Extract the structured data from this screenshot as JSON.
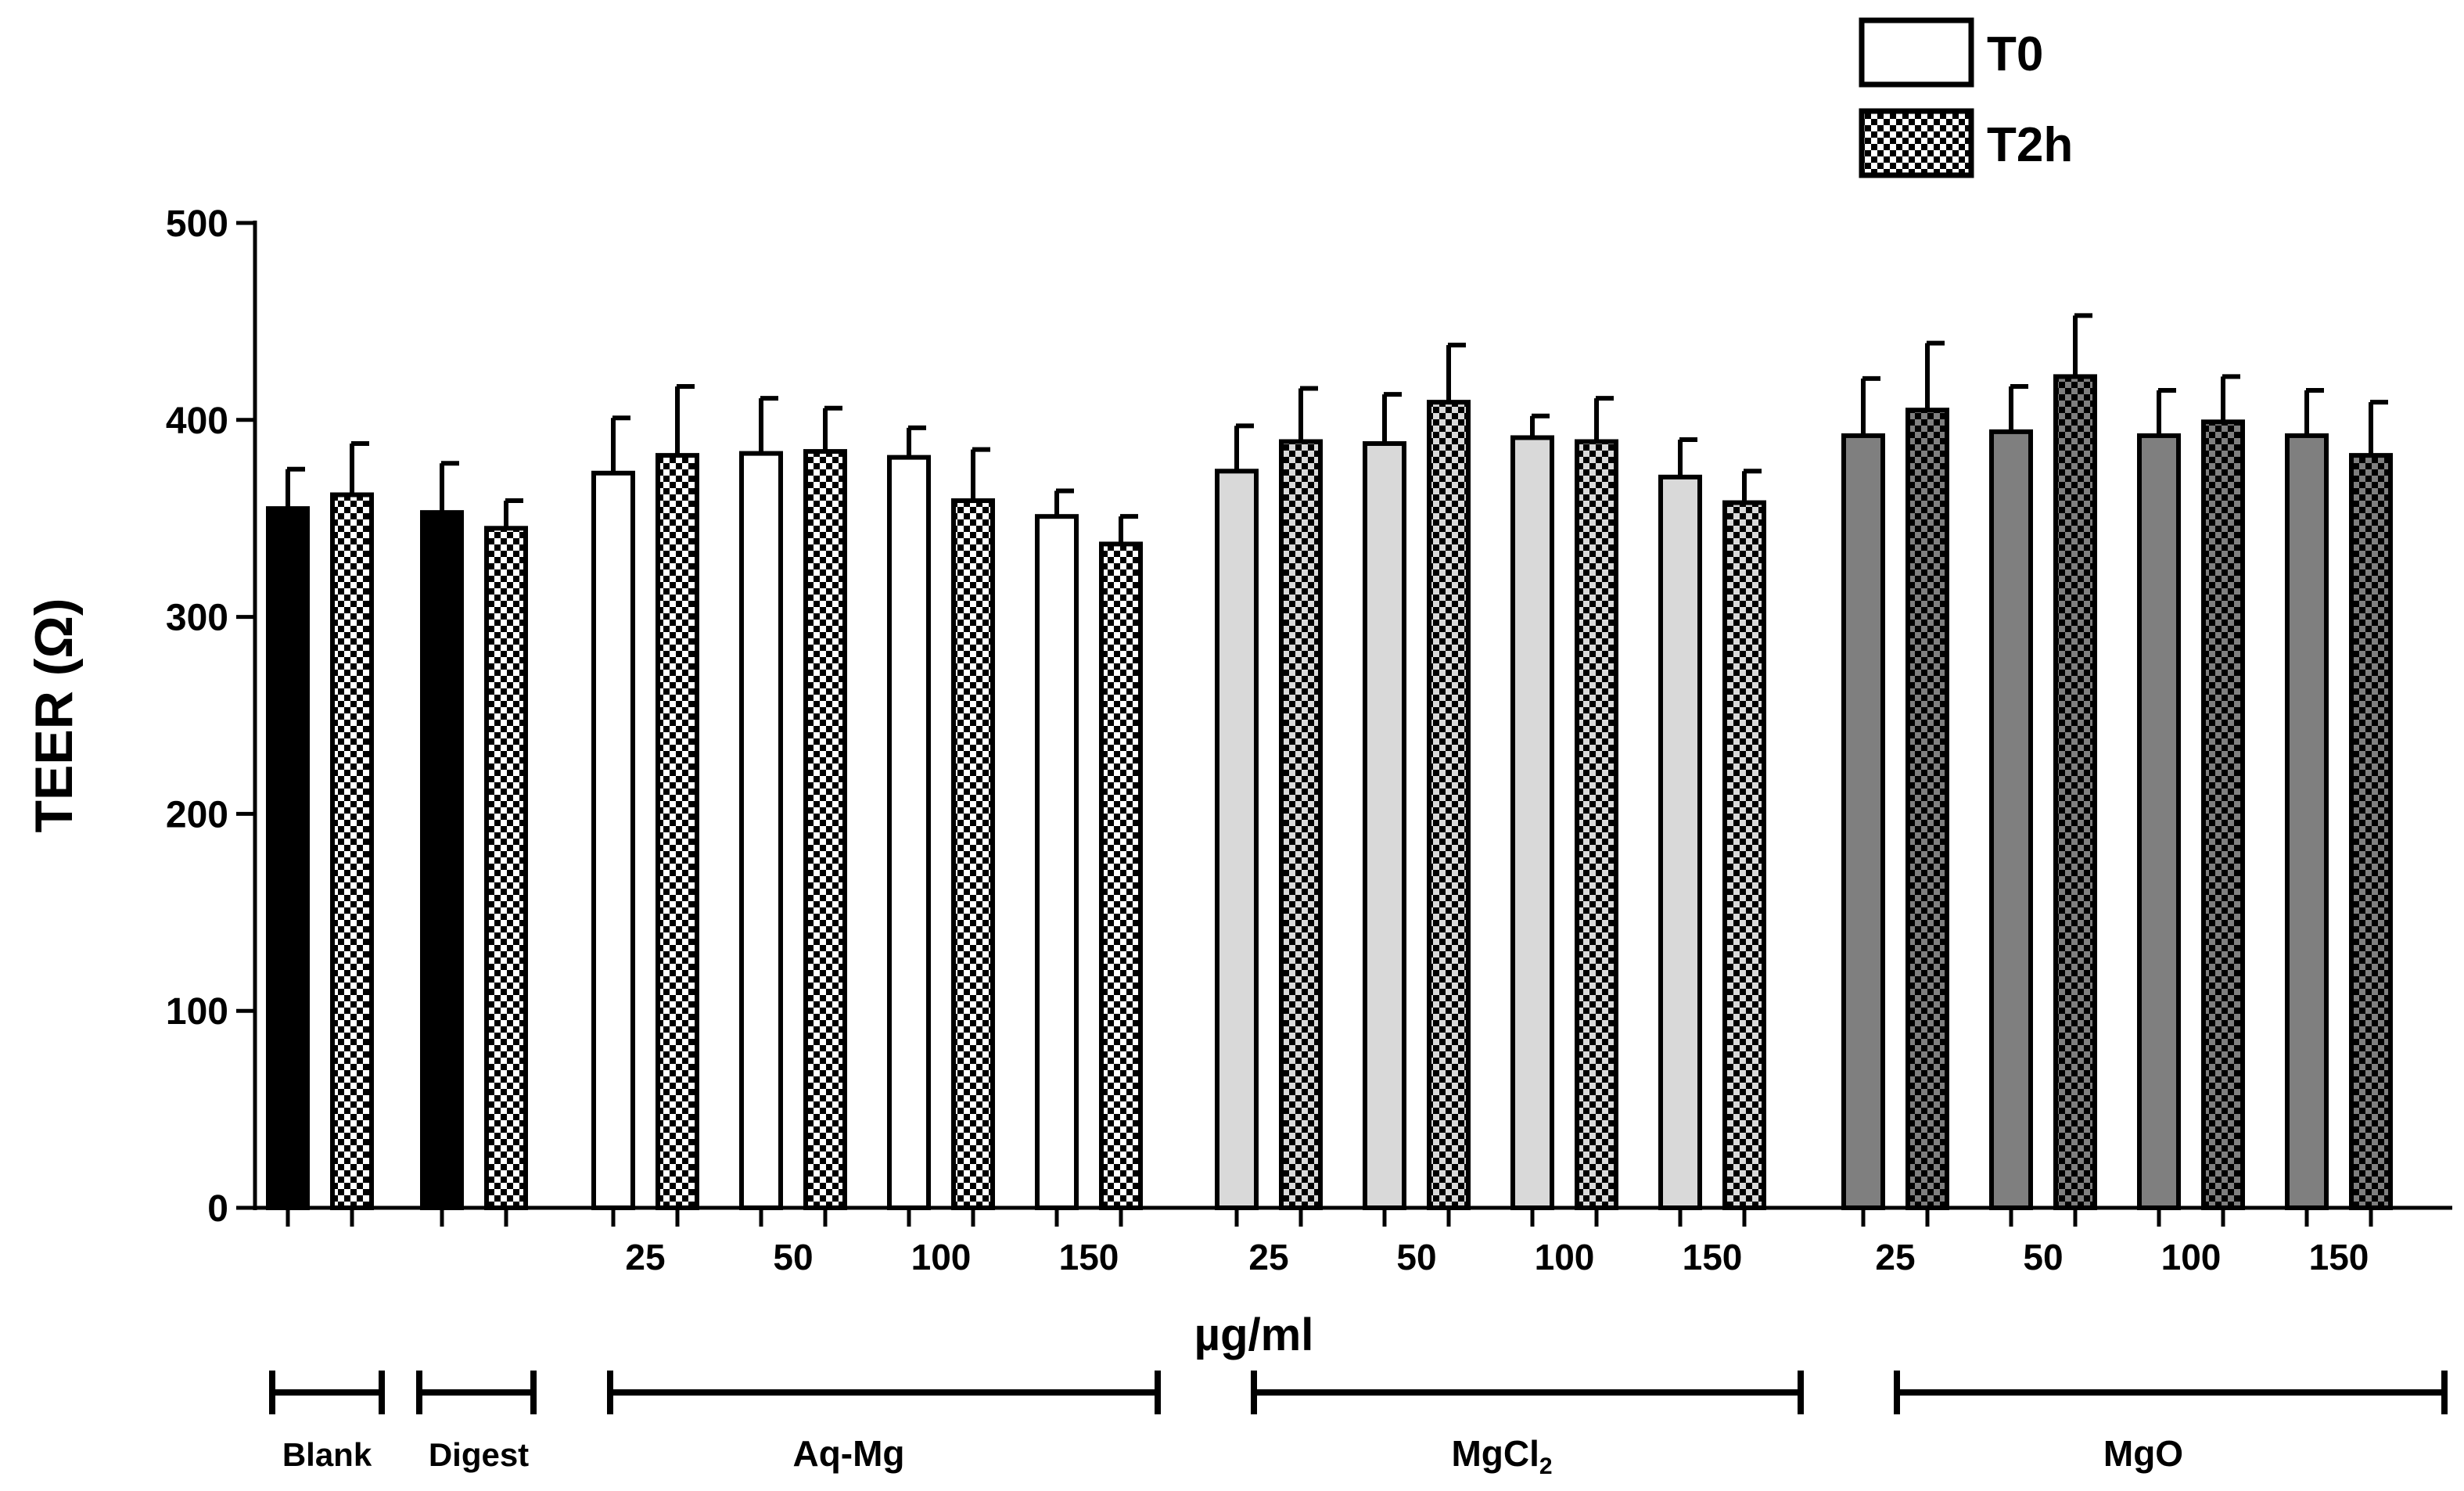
{
  "chart_data": {
    "type": "bar",
    "ylabel": "TEER (Ω)",
    "xlabel": "µg/ml",
    "ylim": [
      0,
      500
    ],
    "yticks": [
      0,
      100,
      200,
      300,
      400,
      500
    ],
    "legend_position": "top-right",
    "legend": [
      {
        "key": "T0",
        "label": "T0",
        "pattern": "solid"
      },
      {
        "key": "T2h",
        "label": "T2h",
        "pattern": "checker"
      }
    ],
    "colors": {
      "blank": "#000000",
      "aqmg": "#ffffff",
      "mgcl2": "#d9d9d9",
      "mgo": "#7f7f7f",
      "outline": "#000000"
    },
    "groups": [
      {
        "id": "blank",
        "label": "Blank",
        "color_key": "blank",
        "concentrations": [
          {
            "label": "",
            "T0": 355,
            "T0_err": 20,
            "T2h": 362,
            "T2h_err": 26
          }
        ]
      },
      {
        "id": "digest",
        "label": "Digest",
        "color_key": "blank",
        "concentrations": [
          {
            "label": "",
            "T0": 353,
            "T0_err": 25,
            "T2h": 345,
            "T2h_err": 14
          }
        ]
      },
      {
        "id": "aqmg",
        "label": "Aq-Mg",
        "color_key": "aqmg",
        "concentrations": [
          {
            "label": "25",
            "T0": 373,
            "T0_err": 28,
            "T2h": 382,
            "T2h_err": 35
          },
          {
            "label": "50",
            "T0": 383,
            "T0_err": 28,
            "T2h": 384,
            "T2h_err": 22
          },
          {
            "label": "100",
            "T0": 381,
            "T0_err": 15,
            "T2h": 359,
            "T2h_err": 26
          },
          {
            "label": "150",
            "T0": 351,
            "T0_err": 13,
            "T2h": 337,
            "T2h_err": 14
          }
        ]
      },
      {
        "id": "mgcl2",
        "label": "MgCl",
        "label_sub": "2",
        "color_key": "mgcl2",
        "concentrations": [
          {
            "label": "25",
            "T0": 374,
            "T0_err": 23,
            "T2h": 389,
            "T2h_err": 27
          },
          {
            "label": "50",
            "T0": 388,
            "T0_err": 25,
            "T2h": 409,
            "T2h_err": 29
          },
          {
            "label": "100",
            "T0": 391,
            "T0_err": 11,
            "T2h": 389,
            "T2h_err": 22
          },
          {
            "label": "150",
            "T0": 371,
            "T0_err": 19,
            "T2h": 358,
            "T2h_err": 16
          }
        ]
      },
      {
        "id": "mgo",
        "label": "MgO",
        "color_key": "mgo",
        "concentrations": [
          {
            "label": "25",
            "T0": 392,
            "T0_err": 29,
            "T2h": 405,
            "T2h_err": 34
          },
          {
            "label": "50",
            "T0": 394,
            "T0_err": 23,
            "T2h": 422,
            "T2h_err": 31
          },
          {
            "label": "100",
            "T0": 392,
            "T0_err": 23,
            "T2h": 399,
            "T2h_err": 23
          },
          {
            "label": "150",
            "T0": 392,
            "T0_err": 23,
            "T2h": 382,
            "T2h_err": 27
          }
        ]
      }
    ]
  }
}
